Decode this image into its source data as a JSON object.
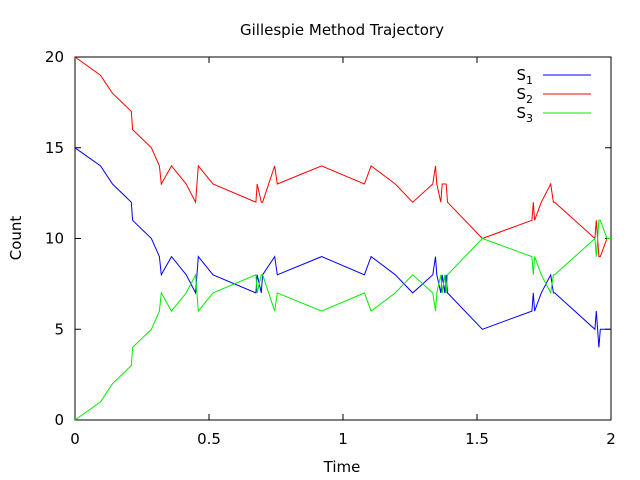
{
  "chart_data": {
    "type": "line",
    "title": "Gillespie Method Trajectory",
    "xlabel": "Time",
    "ylabel": "Count",
    "xlim": [
      0,
      2
    ],
    "ylim": [
      0,
      20
    ],
    "xticks": [
      0,
      0.5,
      1,
      1.5,
      2
    ],
    "xtick_labels": [
      "0",
      "0.5",
      "1",
      "1.5",
      "2"
    ],
    "yticks": [
      0,
      5,
      10,
      15,
      20
    ],
    "ytick_labels": [
      "0",
      "5",
      "10",
      "15",
      "20"
    ],
    "grid": false,
    "legend_position": "top-right",
    "series": [
      {
        "name": "S1",
        "label_base": "S",
        "label_sub": "1",
        "color": "#0000ff",
        "x": [
          0,
          0.095,
          0.14,
          0.21,
          0.215,
          0.285,
          0.315,
          0.322,
          0.36,
          0.415,
          0.45,
          0.46,
          0.515,
          0.675,
          0.68,
          0.695,
          0.7,
          0.745,
          0.755,
          0.92,
          1.08,
          1.105,
          1.195,
          1.26,
          1.335,
          1.345,
          1.35,
          1.365,
          1.37,
          1.38,
          1.385,
          1.39,
          1.52,
          1.705,
          1.71,
          1.715,
          1.74,
          1.775,
          1.785,
          1.79,
          1.94,
          1.945,
          1.955,
          1.96,
          1.985,
          2
        ],
        "y": [
          15,
          14,
          13,
          12,
          11,
          10,
          9,
          8,
          9,
          8,
          7,
          9,
          8,
          7,
          8,
          7,
          8,
          9,
          8,
          9,
          8,
          9,
          8,
          7,
          8,
          9,
          8,
          7,
          8,
          7,
          8,
          7,
          5,
          6,
          7,
          6,
          7,
          8,
          7,
          7,
          5,
          6,
          4,
          5,
          5,
          5
        ]
      },
      {
        "name": "S2",
        "label_base": "S",
        "label_sub": "2",
        "color": "#ff0000",
        "x": [
          0,
          0.095,
          0.14,
          0.21,
          0.215,
          0.285,
          0.315,
          0.322,
          0.36,
          0.415,
          0.45,
          0.46,
          0.515,
          0.675,
          0.68,
          0.695,
          0.7,
          0.745,
          0.755,
          0.92,
          1.08,
          1.105,
          1.195,
          1.26,
          1.335,
          1.345,
          1.35,
          1.365,
          1.37,
          1.38,
          1.385,
          1.39,
          1.52,
          1.705,
          1.71,
          1.715,
          1.74,
          1.775,
          1.785,
          1.79,
          1.94,
          1.945,
          1.955,
          1.96,
          1.985,
          2
        ],
        "y": [
          20,
          19,
          18,
          17,
          16,
          15,
          14,
          13,
          14,
          13,
          12,
          14,
          13,
          12,
          13,
          12,
          12,
          14,
          13,
          14,
          13,
          14,
          13,
          12,
          13,
          14,
          13,
          12,
          13,
          13,
          13,
          12,
          10,
          11,
          12,
          11,
          12,
          13,
          12,
          12,
          10,
          11,
          9,
          9,
          10,
          10
        ]
      },
      {
        "name": "S3",
        "label_base": "S",
        "label_sub": "3",
        "color": "#00ee00",
        "x": [
          0,
          0.095,
          0.14,
          0.21,
          0.215,
          0.285,
          0.315,
          0.322,
          0.36,
          0.415,
          0.45,
          0.46,
          0.515,
          0.675,
          0.68,
          0.695,
          0.7,
          0.745,
          0.755,
          0.92,
          1.08,
          1.105,
          1.195,
          1.26,
          1.335,
          1.345,
          1.35,
          1.365,
          1.37,
          1.38,
          1.385,
          1.39,
          1.52,
          1.705,
          1.71,
          1.715,
          1.74,
          1.775,
          1.785,
          1.79,
          1.94,
          1.945,
          1.955,
          1.96,
          1.985,
          2
        ],
        "y": [
          0,
          1,
          2,
          3,
          4,
          5,
          6,
          7,
          6,
          7,
          8,
          6,
          7,
          8,
          7,
          8,
          8,
          6,
          7,
          6,
          7,
          6,
          7,
          8,
          7,
          6,
          7,
          8,
          7,
          8,
          7,
          8,
          10,
          9,
          8,
          9,
          8,
          7,
          8,
          8,
          10,
          9,
          11,
          11,
          10,
          10
        ]
      }
    ]
  }
}
